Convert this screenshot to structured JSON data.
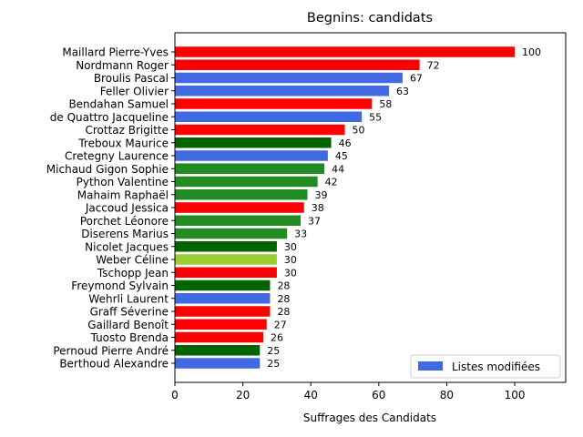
{
  "chart_data": {
    "type": "bar",
    "orientation": "horizontal",
    "title": "Begnins: candidats",
    "xlabel": "Suffrages des Candidats",
    "ylabel": "",
    "xlim": [
      0,
      115
    ],
    "xticks": [
      0,
      20,
      40,
      60,
      80,
      100
    ],
    "grid": false,
    "legend": {
      "placement": "lower-right",
      "entries": [
        {
          "label": "Listes modifiées",
          "color": "#4169E1"
        }
      ]
    },
    "categories": [
      "Maillard Pierre-Yves",
      "Nordmann Roger",
      "Broulis Pascal",
      "Feller Olivier",
      "Bendahan Samuel",
      "de Quattro Jacqueline",
      "Crottaz Brigitte",
      "Treboux Maurice",
      "Cretegny Laurence",
      "Michaud Gigon Sophie",
      "Python Valentine",
      "Mahaim Raphaël",
      "Jaccoud Jessica",
      "Porchet Léonore",
      "Diserens Marius",
      "Nicolet Jacques",
      "Weber Céline",
      "Tschopp Jean",
      "Freymond Sylvain",
      "Wehrli Laurent",
      "Graff Séverine",
      "Gaillard Benoît",
      "Tuosto Brenda",
      "Pernoud Pierre André",
      "Berthoud Alexandre"
    ],
    "values": [
      100,
      72,
      67,
      63,
      58,
      55,
      50,
      46,
      45,
      44,
      42,
      39,
      38,
      37,
      33,
      30,
      30,
      30,
      28,
      28,
      28,
      27,
      26,
      25,
      25
    ],
    "colors": [
      "#FF0000",
      "#FF0000",
      "#4169E1",
      "#4169E1",
      "#FF0000",
      "#4169E1",
      "#FF0000",
      "#006400",
      "#4169E1",
      "#228B22",
      "#228B22",
      "#228B22",
      "#FF0000",
      "#228B22",
      "#228B22",
      "#006400",
      "#9ACD32",
      "#FF0000",
      "#006400",
      "#4169E1",
      "#FF0000",
      "#FF0000",
      "#FF0000",
      "#006400",
      "#4169E1"
    ]
  }
}
